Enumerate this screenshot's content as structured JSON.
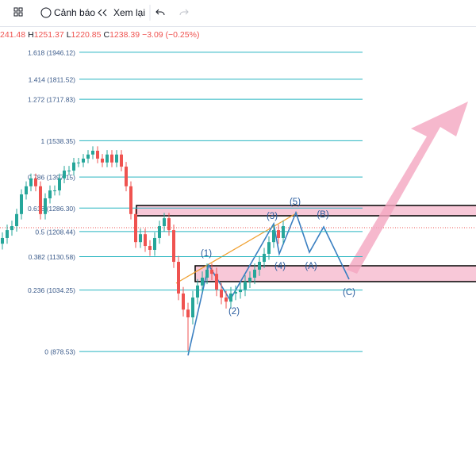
{
  "header": {
    "toolbar": [
      "Cảnh báo",
      "Xem lại"
    ],
    "ohlc": [
      {
        "value": "241.48"
      },
      {
        "key": "H",
        "value": "1251.37"
      },
      {
        "key": "L",
        "value": "1220.85"
      },
      {
        "key": "C",
        "value": "1238.39"
      },
      {
        "value": "−3.09 (−0.25%)"
      }
    ]
  },
  "chart_data": {
    "type": "candlestick",
    "log_scale": true,
    "ylim": [
      631,
      2086
    ],
    "up_color": "#26a69a",
    "down_color": "#ef5350",
    "fib_color": "#26b5c0",
    "fib_levels": [
      {
        "label": "1.618 (1946.12)",
        "price": 1946.12
      },
      {
        "label": "1.414 (1811.52)",
        "price": 1811.52
      },
      {
        "label": "1.272 (1717.83)",
        "price": 1717.83
      },
      {
        "label": "1 (1538.35)",
        "price": 1538.35
      },
      {
        "label": "0.786 (1397.15)",
        "price": 1397.15
      },
      {
        "label": "0.618 (1286.30)",
        "price": 1286.3
      },
      {
        "label": "0.5 (1208.44)",
        "price": 1208.44
      },
      {
        "label": "0.382 (1130.58)",
        "price": 1130.58
      },
      {
        "label": "0.236 (1034.25)",
        "price": 1034.25
      },
      {
        "label": "0 (878.53)",
        "price": 878.53
      }
    ],
    "open": [
      1170,
      1188,
      1213,
      1226,
      1266,
      1334,
      1363,
      1392,
      1363,
      1266,
      1320,
      1348,
      1348,
      1392,
      1421,
      1421,
      1452,
      1452,
      1467,
      1483,
      1498,
      1467,
      1452,
      1483,
      1452,
      1483,
      1436,
      1363,
      1266,
      1175,
      1200,
      1163,
      1151,
      1188,
      1226,
      1252,
      1213,
      1115,
      1025,
      982,
      962,
      1014,
      1047,
      1069,
      1092,
      1080,
      1036,
      1014,
      1003,
      1025,
      1029,
      1036,
      1058,
      1069,
      1092,
      1115,
      1139,
      1175,
      1213,
      1188
    ],
    "high": [
      1206,
      1231,
      1244,
      1284,
      1352,
      1381,
      1410,
      1410,
      1381,
      1338,
      1366,
      1366,
      1410,
      1439,
      1439,
      1470,
      1470,
      1485,
      1501,
      1516,
      1516,
      1485,
      1501,
      1501,
      1501,
      1501,
      1454,
      1381,
      1284,
      1218,
      1218,
      1181,
      1206,
      1244,
      1270,
      1270,
      1231,
      1133,
      1043,
      1000,
      1032,
      1065,
      1087,
      1110,
      1110,
      1098,
      1054,
      1032,
      1043,
      1047,
      1054,
      1076,
      1087,
      1110,
      1133,
      1157,
      1193,
      1231,
      1231,
      1244
    ],
    "low": [
      1152,
      1170,
      1195,
      1208,
      1248,
      1316,
      1345,
      1345,
      1248,
      1248,
      1302,
      1330,
      1330,
      1374,
      1403,
      1403,
      1434,
      1434,
      1449,
      1465,
      1449,
      1434,
      1434,
      1434,
      1434,
      1418,
      1345,
      1248,
      1157,
      1157,
      1145,
      1133,
      1133,
      1170,
      1208,
      1195,
      1097,
      1007,
      964,
      880,
      944,
      996,
      1029,
      1051,
      1062,
      1018,
      996,
      985,
      985,
      1007,
      1011,
      1018,
      1040,
      1051,
      1074,
      1097,
      1121,
      1157,
      1170,
      1170
    ],
    "close": [
      1188,
      1213,
      1226,
      1266,
      1334,
      1363,
      1392,
      1363,
      1266,
      1320,
      1348,
      1348,
      1392,
      1421,
      1421,
      1452,
      1452,
      1467,
      1483,
      1498,
      1467,
      1452,
      1483,
      1452,
      1483,
      1436,
      1363,
      1266,
      1175,
      1200,
      1163,
      1151,
      1188,
      1226,
      1252,
      1213,
      1115,
      1025,
      982,
      962,
      1014,
      1047,
      1069,
      1092,
      1080,
      1036,
      1014,
      1003,
      1025,
      1029,
      1036,
      1058,
      1069,
      1092,
      1115,
      1139,
      1175,
      1213,
      1188,
      1226
    ],
    "wave_labels": [
      "(1)",
      "(2)",
      "(3)",
      "(4)",
      "(5)",
      "(A)",
      "(B)",
      "(C)"
    ]
  }
}
